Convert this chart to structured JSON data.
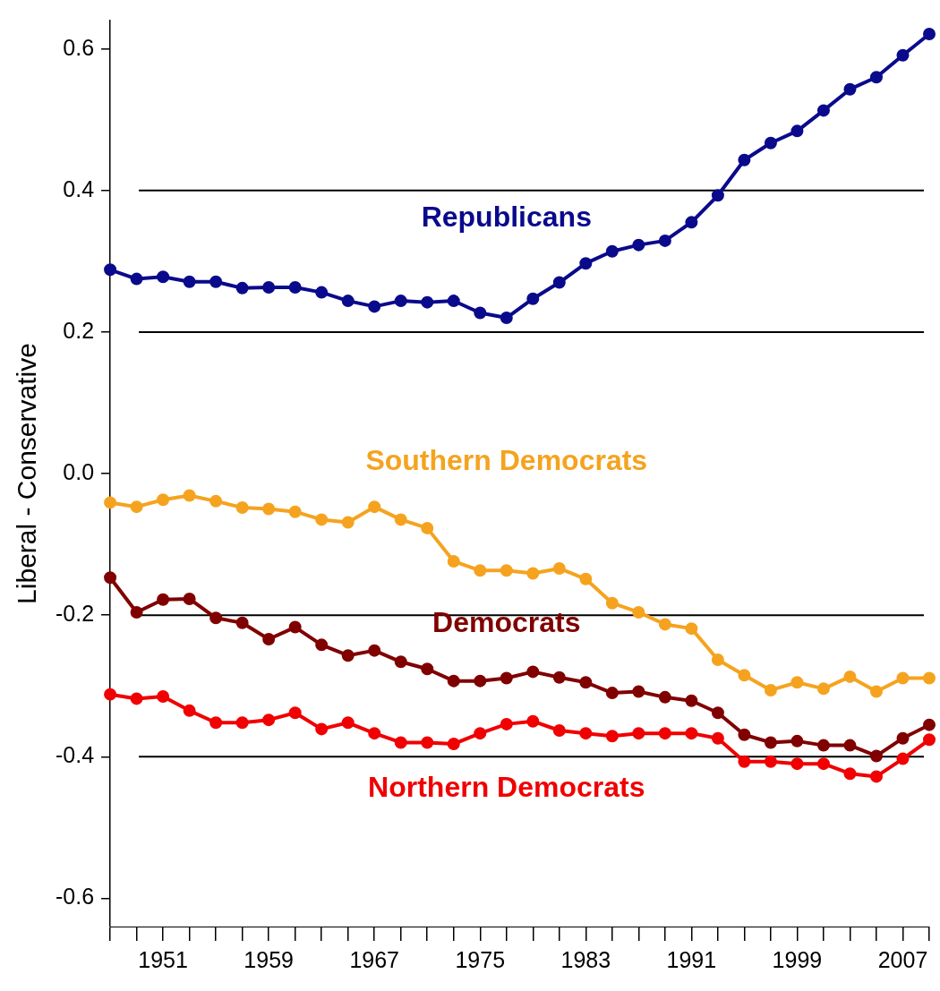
{
  "chart_data": {
    "type": "line",
    "ylabel": "Liberal - Conservative",
    "x": [
      1947,
      1949,
      1951,
      1953,
      1955,
      1957,
      1959,
      1961,
      1963,
      1965,
      1967,
      1969,
      1971,
      1973,
      1975,
      1977,
      1979,
      1981,
      1983,
      1985,
      1987,
      1989,
      1991,
      1993,
      1995,
      1997,
      1999,
      2001,
      2003,
      2005,
      2007,
      2009
    ],
    "series": [
      {
        "name": "Republicans",
        "color": "#0a0a8c",
        "values": [
          0.288,
          0.275,
          0.278,
          0.271,
          0.271,
          0.262,
          0.263,
          0.263,
          0.256,
          0.244,
          0.236,
          0.244,
          0.242,
          0.244,
          0.227,
          0.22,
          0.247,
          0.27,
          0.297,
          0.314,
          0.323,
          0.329,
          0.355,
          0.393,
          0.443,
          0.467,
          0.484,
          0.513,
          0.543,
          0.56,
          0.591,
          0.621
        ]
      },
      {
        "name": "Southern Democrats",
        "color": "#f5a31f",
        "values": [
          -0.041,
          -0.047,
          -0.037,
          -0.031,
          -0.039,
          -0.048,
          -0.05,
          -0.054,
          -0.065,
          -0.069,
          -0.047,
          -0.065,
          -0.077,
          -0.124,
          -0.137,
          -0.137,
          -0.141,
          -0.134,
          -0.149,
          -0.183,
          -0.196,
          -0.213,
          -0.219,
          -0.263,
          -0.285,
          -0.306,
          -0.295,
          -0.304,
          -0.287,
          -0.308,
          -0.289,
          -0.289
        ]
      },
      {
        "name": "Democrats",
        "color": "#800000",
        "values": [
          -0.147,
          -0.196,
          -0.178,
          -0.177,
          -0.204,
          -0.211,
          -0.234,
          -0.217,
          -0.242,
          -0.257,
          -0.25,
          -0.266,
          -0.276,
          -0.293,
          -0.293,
          -0.289,
          -0.28,
          -0.288,
          -0.295,
          -0.31,
          -0.308,
          -0.316,
          -0.321,
          -0.338,
          -0.369,
          -0.38,
          -0.378,
          -0.384,
          -0.384,
          -0.399,
          -0.374,
          -0.355
        ]
      },
      {
        "name": "Northern Democrats",
        "color": "#f00000",
        "values": [
          -0.312,
          -0.318,
          -0.315,
          -0.335,
          -0.352,
          -0.352,
          -0.348,
          -0.338,
          -0.361,
          -0.352,
          -0.367,
          -0.38,
          -0.38,
          -0.382,
          -0.367,
          -0.354,
          -0.35,
          -0.363,
          -0.367,
          -0.371,
          -0.367,
          -0.367,
          -0.367,
          -0.374,
          -0.407,
          -0.407,
          -0.41,
          -0.41,
          -0.424,
          -0.428,
          -0.403,
          -0.376
        ]
      }
    ],
    "xlim": [
      1947,
      2009
    ],
    "xticks": [
      {
        "value": 1947,
        "label": null
      },
      {
        "value": 1949,
        "label": null
      },
      1951,
      {
        "value": 1953,
        "label": null
      },
      {
        "value": 1955,
        "label": null
      },
      {
        "value": 1957,
        "label": null
      },
      1959,
      {
        "value": 1961,
        "label": null
      },
      {
        "value": 1963,
        "label": null
      },
      {
        "value": 1965,
        "label": null
      },
      1967,
      {
        "value": 1969,
        "label": null
      },
      {
        "value": 1971,
        "label": null
      },
      {
        "value": 1973,
        "label": null
      },
      1975,
      {
        "value": 1977,
        "label": null
      },
      {
        "value": 1979,
        "label": null
      },
      {
        "value": 1981,
        "label": null
      },
      1983,
      {
        "value": 1985,
        "label": null
      },
      {
        "value": 1987,
        "label": null
      },
      {
        "value": 1989,
        "label": null
      },
      1991,
      {
        "value": 1993,
        "label": null
      },
      {
        "value": 1995,
        "label": null
      },
      {
        "value": 1997,
        "label": null
      },
      1999,
      {
        "value": 2001,
        "label": null
      },
      {
        "value": 2003,
        "label": null
      },
      {
        "value": 2005,
        "label": null
      },
      2007,
      {
        "value": 2009,
        "label": null
      }
    ],
    "ylim": [
      -0.64,
      0.64
    ],
    "yticks": [
      0.6,
      0.4,
      0.2,
      {
        "value": 0,
        "label": "0.0"
      },
      -0.2,
      -0.4,
      -0.6
    ],
    "ref_lines": [
      {
        "axis": "y",
        "value": 0.4,
        "color": "#000000"
      },
      {
        "axis": "y",
        "value": 0.2,
        "color": "#000000"
      },
      {
        "axis": "y",
        "value": -0.2,
        "color": "#000000"
      },
      {
        "axis": "y",
        "value": -0.4,
        "color": "#000000"
      }
    ],
    "grid": false,
    "legend": false,
    "marker": "circle",
    "line_style": "solid"
  }
}
